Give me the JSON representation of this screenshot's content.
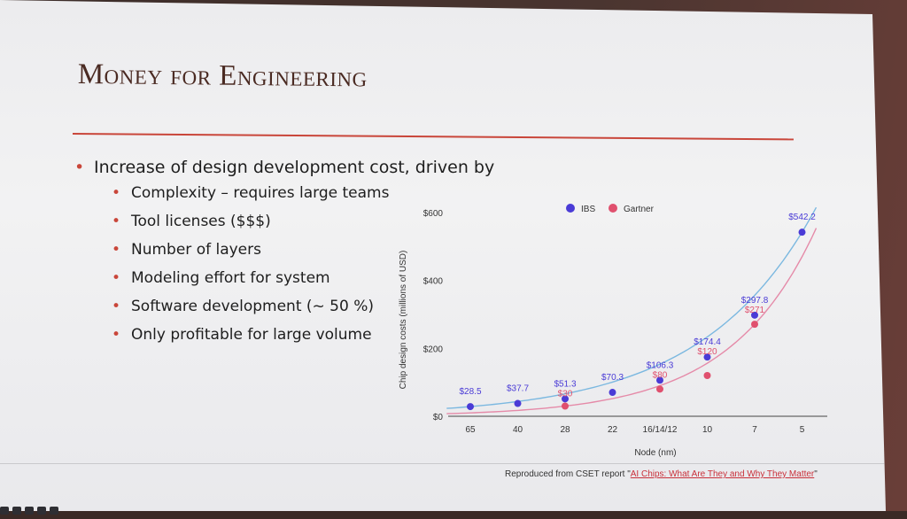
{
  "slide": {
    "title": "Money for Engineering",
    "bullet_main": "Increase of design development cost, driven by",
    "sub_bullets": [
      "Complexity – requires large teams",
      "Tool licenses ($$$)",
      "Number of layers",
      "Modeling effort for system",
      "Software development (~ 50 %)",
      "Only profitable for large volume"
    ],
    "footer_prefix": "Reproduced from CSET report \"",
    "footer_link": "AI Chips: What Are They and Why They Matter",
    "footer_suffix": "\""
  },
  "colors": {
    "title": "#4a2a22",
    "accent": "#c9463a",
    "ibs": "#4a3bd6",
    "gartner": "#e0506e"
  },
  "chart_data": {
    "type": "scatter",
    "xlabel": "Node (nm)",
    "ylabel": "Chip design costs (millions of USD)",
    "categories": [
      "65",
      "40",
      "28",
      "22",
      "16/14/12",
      "10",
      "7",
      "5"
    ],
    "y_ticks": [
      "$0",
      "$200",
      "$400",
      "$600"
    ],
    "ylim": [
      0,
      600
    ],
    "legend_placement": "top-center",
    "series": [
      {
        "name": "IBS",
        "values": [
          28.5,
          37.7,
          51.3,
          70.3,
          106.3,
          174.4,
          297.8,
          542.2
        ],
        "labels": [
          "$28.5",
          "$37.7",
          "$51.3",
          "$70.3",
          "$106.3",
          "$174.4",
          "$297.8",
          "$542.2"
        ]
      },
      {
        "name": "Gartner",
        "values": [
          null,
          null,
          30,
          null,
          80,
          120,
          271,
          null
        ],
        "labels": [
          null,
          null,
          "$30",
          null,
          "$80",
          "$120",
          "$271",
          null
        ]
      }
    ]
  }
}
